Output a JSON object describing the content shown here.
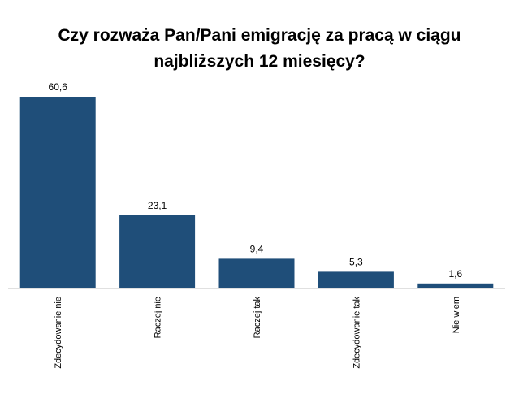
{
  "chart_data": {
    "type": "bar",
    "title_lines": [
      "Czy rozważa Pan/Pani emigrację za pracą w ciągu",
      "najbliższych 12 miesięcy?"
    ],
    "categories": [
      "Zdecydowanie nie",
      "Raczej nie",
      "Raczej tak",
      "Zdecydowanie tak",
      "Nie wiem"
    ],
    "values": [
      60.6,
      23.1,
      9.4,
      5.3,
      1.6
    ],
    "value_labels": [
      "60,6",
      "23,1",
      "9,4",
      "5,3",
      "1,6"
    ],
    "xlabel": "",
    "ylabel": "",
    "ylim": [
      0,
      60.6
    ],
    "grid": false,
    "legend": "none",
    "bar_color": "#1f4e79",
    "axis_color": "#c0c0c0"
  }
}
